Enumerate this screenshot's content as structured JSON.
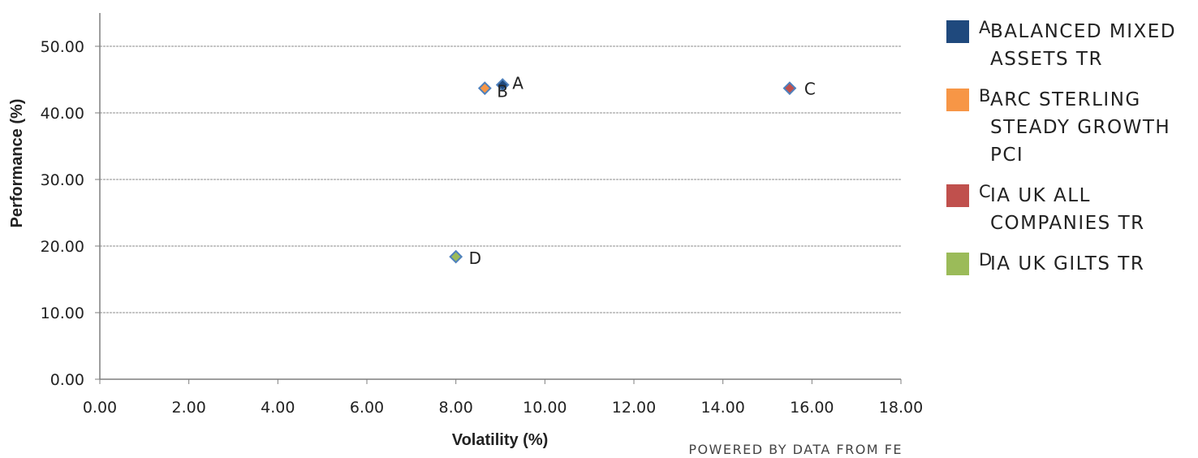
{
  "chart_data": {
    "type": "scatter",
    "title": "",
    "xlabel": "Volatility (%)",
    "ylabel": "Performance (%)",
    "xlim": [
      0,
      18
    ],
    "ylim": [
      0,
      50
    ],
    "x_ticks": [
      "0.00",
      "2.00",
      "4.00",
      "6.00",
      "8.00",
      "10.00",
      "12.00",
      "14.00",
      "16.00",
      "18.00"
    ],
    "y_ticks": [
      "0.00",
      "10.00",
      "20.00",
      "30.00",
      "40.00",
      "50.00"
    ],
    "grid": "horizontal",
    "legend_position": "right",
    "points": [
      {
        "id": "A",
        "name": "BALANCED MIXED ASSETS TR",
        "x": 9.05,
        "y": 44.2,
        "color": "#1F497D"
      },
      {
        "id": "B",
        "name": "ARC STERLING STEADY GROWTH PCI",
        "x": 8.65,
        "y": 43.7,
        "color": "#F79646"
      },
      {
        "id": "C",
        "name": "IA UK ALL COMPANIES TR",
        "x": 15.5,
        "y": 43.7,
        "color": "#C0504D"
      },
      {
        "id": "D",
        "name": "IA UK GILTS TR",
        "x": 8.0,
        "y": 18.4,
        "color": "#9BBB59"
      }
    ]
  },
  "legend": [
    {
      "letter": "A",
      "name": "BALANCED MIXED ASSETS TR",
      "color": "#1F497D"
    },
    {
      "letter": "B",
      "name": "ARC STERLING STEADY GROWTH PCI",
      "color": "#F79646"
    },
    {
      "letter": "C",
      "name": "IA UK ALL COMPANIES TR",
      "color": "#C0504D"
    },
    {
      "letter": "D",
      "name": "IA UK GILTS TR",
      "color": "#9BBB59"
    }
  ],
  "footer": "POWERED BY DATA FROM FE"
}
